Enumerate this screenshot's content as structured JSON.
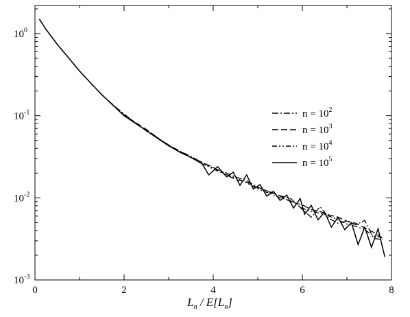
{
  "chart_data": {
    "type": "line",
    "x_axis": {
      "label_main": "L",
      "label_sub1": "n",
      "label_mid": " / E[L",
      "label_sub2": "n",
      "label_end": "]",
      "range": [
        0,
        8
      ],
      "ticks": [
        0,
        2,
        4,
        6,
        8
      ],
      "tick_labels": [
        "0",
        "2",
        "4",
        "6",
        "8"
      ]
    },
    "y_axis": {
      "scale": "log",
      "range": [
        0.001,
        2.2
      ],
      "ticks": [
        1,
        0.1,
        0.01,
        0.001
      ],
      "tick_bases": [
        "10",
        "10",
        "10",
        "10"
      ],
      "tick_exponents": [
        "0",
        "-1",
        "-2",
        "-3"
      ]
    },
    "grid": false,
    "legend": {
      "position": "top-right",
      "entries": [
        {
          "prefix": "n = 10",
          "exp": "2",
          "style": "dash-dot"
        },
        {
          "prefix": "n = 10",
          "exp": "3",
          "style": "dashed"
        },
        {
          "prefix": "n = 10",
          "exp": "4",
          "style": "dash-dot-dot"
        },
        {
          "prefix": "n = 10",
          "exp": "5",
          "style": "solid"
        }
      ]
    },
    "series": [
      {
        "name": "n = 10^2",
        "style": "dash-dot",
        "x": [
          0.1,
          0.25,
          0.5,
          0.75,
          1.0,
          1.25,
          1.5,
          1.75,
          2.0,
          2.25,
          2.5,
          2.75,
          3.0,
          3.25,
          3.5,
          3.75,
          4.0,
          4.25,
          4.5,
          4.75,
          5.0,
          5.25,
          5.5,
          5.75,
          6.0,
          6.2,
          6.4,
          6.6,
          6.8,
          7.0,
          7.2,
          7.4,
          7.6,
          7.8
        ],
        "y": [
          1.5,
          1.12,
          0.74,
          0.51,
          0.35,
          0.25,
          0.18,
          0.135,
          0.105,
          0.082,
          0.065,
          0.053,
          0.044,
          0.037,
          0.032,
          0.027,
          0.023,
          0.0205,
          0.018,
          0.0162,
          0.0135,
          0.0118,
          0.0106,
          0.0097,
          0.0072,
          0.0058,
          0.0078,
          0.0056,
          0.0049,
          0.0052,
          0.0047,
          0.0053,
          0.0032,
          0.0031
        ]
      },
      {
        "name": "n = 10^3",
        "style": "dashed",
        "x": [
          0.1,
          0.25,
          0.5,
          0.75,
          1.0,
          1.25,
          1.5,
          1.75,
          2.0,
          2.25,
          2.5,
          2.75,
          3.0,
          3.25,
          3.5,
          3.75,
          4.0,
          4.25,
          4.5,
          4.75,
          5.0,
          5.25,
          5.5,
          5.75,
          6.0,
          6.2,
          6.4,
          6.6,
          6.8,
          7.0,
          7.2,
          7.4,
          7.6,
          7.8
        ],
        "y": [
          1.5,
          1.12,
          0.74,
          0.51,
          0.35,
          0.25,
          0.18,
          0.136,
          0.102,
          0.083,
          0.068,
          0.054,
          0.043,
          0.037,
          0.031,
          0.027,
          0.0235,
          0.0195,
          0.0168,
          0.0155,
          0.0132,
          0.012,
          0.0105,
          0.0089,
          0.0082,
          0.0072,
          0.0068,
          0.0062,
          0.0058,
          0.0052,
          0.0049,
          0.0043,
          0.0038,
          0.0032
        ]
      },
      {
        "name": "n = 10^4",
        "style": "dash-dot-dot",
        "x": [
          0.1,
          0.25,
          0.5,
          0.75,
          1.0,
          1.25,
          1.5,
          1.75,
          2.0,
          2.25,
          2.5,
          2.75,
          3.0,
          3.25,
          3.5,
          3.75,
          4.0,
          4.25,
          4.5,
          4.75,
          5.0,
          5.25,
          5.5,
          5.75,
          6.0,
          6.2,
          6.4,
          6.6,
          6.8,
          7.0,
          7.2,
          7.4,
          7.6,
          7.8
        ],
        "y": [
          1.5,
          1.12,
          0.74,
          0.51,
          0.35,
          0.25,
          0.18,
          0.134,
          0.102,
          0.082,
          0.066,
          0.054,
          0.044,
          0.036,
          0.031,
          0.026,
          0.0225,
          0.0195,
          0.0175,
          0.0152,
          0.0128,
          0.0114,
          0.01,
          0.0091,
          0.0075,
          0.0068,
          0.0065,
          0.006,
          0.0054,
          0.0048,
          0.0045,
          0.0041,
          0.0034,
          0.0033
        ]
      },
      {
        "name": "n = 10^5",
        "style": "solid",
        "x": [
          0.1,
          0.25,
          0.5,
          0.75,
          1.0,
          1.25,
          1.5,
          1.75,
          2.0,
          2.25,
          2.5,
          2.75,
          3.0,
          3.25,
          3.5,
          3.75,
          3.9,
          4.1,
          4.3,
          4.45,
          4.6,
          4.75,
          4.9,
          5.05,
          5.2,
          5.35,
          5.5,
          5.65,
          5.8,
          5.95,
          6.05,
          6.2,
          6.35,
          6.5,
          6.65,
          6.8,
          6.95,
          7.1,
          7.25,
          7.4,
          7.55,
          7.7,
          7.85
        ],
        "y": [
          1.5,
          1.12,
          0.74,
          0.51,
          0.35,
          0.25,
          0.18,
          0.134,
          0.1,
          0.081,
          0.066,
          0.053,
          0.043,
          0.036,
          0.031,
          0.026,
          0.019,
          0.024,
          0.018,
          0.0205,
          0.0142,
          0.019,
          0.0128,
          0.0145,
          0.0105,
          0.012,
          0.0093,
          0.0108,
          0.0075,
          0.0098,
          0.0063,
          0.0081,
          0.0054,
          0.0067,
          0.0044,
          0.0058,
          0.0041,
          0.005,
          0.0027,
          0.0044,
          0.0025,
          0.0042,
          0.0019
        ]
      }
    ]
  }
}
